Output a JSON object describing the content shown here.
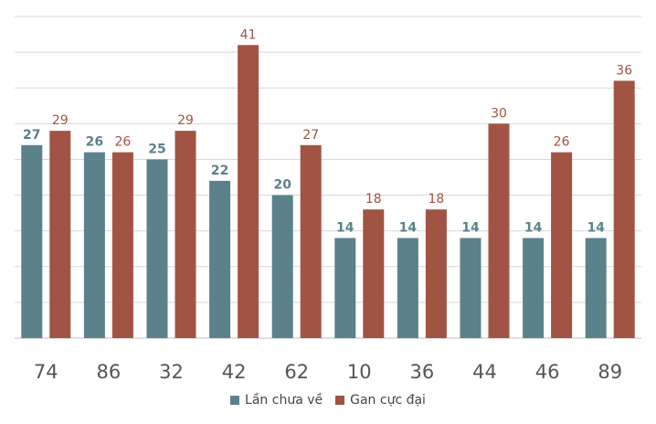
{
  "chart_data": {
    "type": "bar",
    "categories": [
      "74",
      "86",
      "32",
      "42",
      "62",
      "10",
      "36",
      "44",
      "46",
      "89"
    ],
    "series": [
      {
        "name": "Lần chưa về",
        "values": [
          27,
          26,
          25,
          22,
          20,
          14,
          14,
          14,
          14,
          14
        ],
        "color": "#5b818b"
      },
      {
        "name": "Gan cực đại",
        "values": [
          29,
          26,
          29,
          41,
          27,
          18,
          18,
          30,
          26,
          36
        ],
        "color": "#a15444"
      }
    ],
    "ylim": [
      0,
      45
    ],
    "y_gridlines": [
      0,
      5,
      10,
      15,
      20,
      25,
      30,
      35,
      40,
      45
    ],
    "grid": true,
    "legend_position": "bottom",
    "data_labels": true,
    "gridline_color": "#d9d9d9",
    "category_label_color": "#555555"
  }
}
